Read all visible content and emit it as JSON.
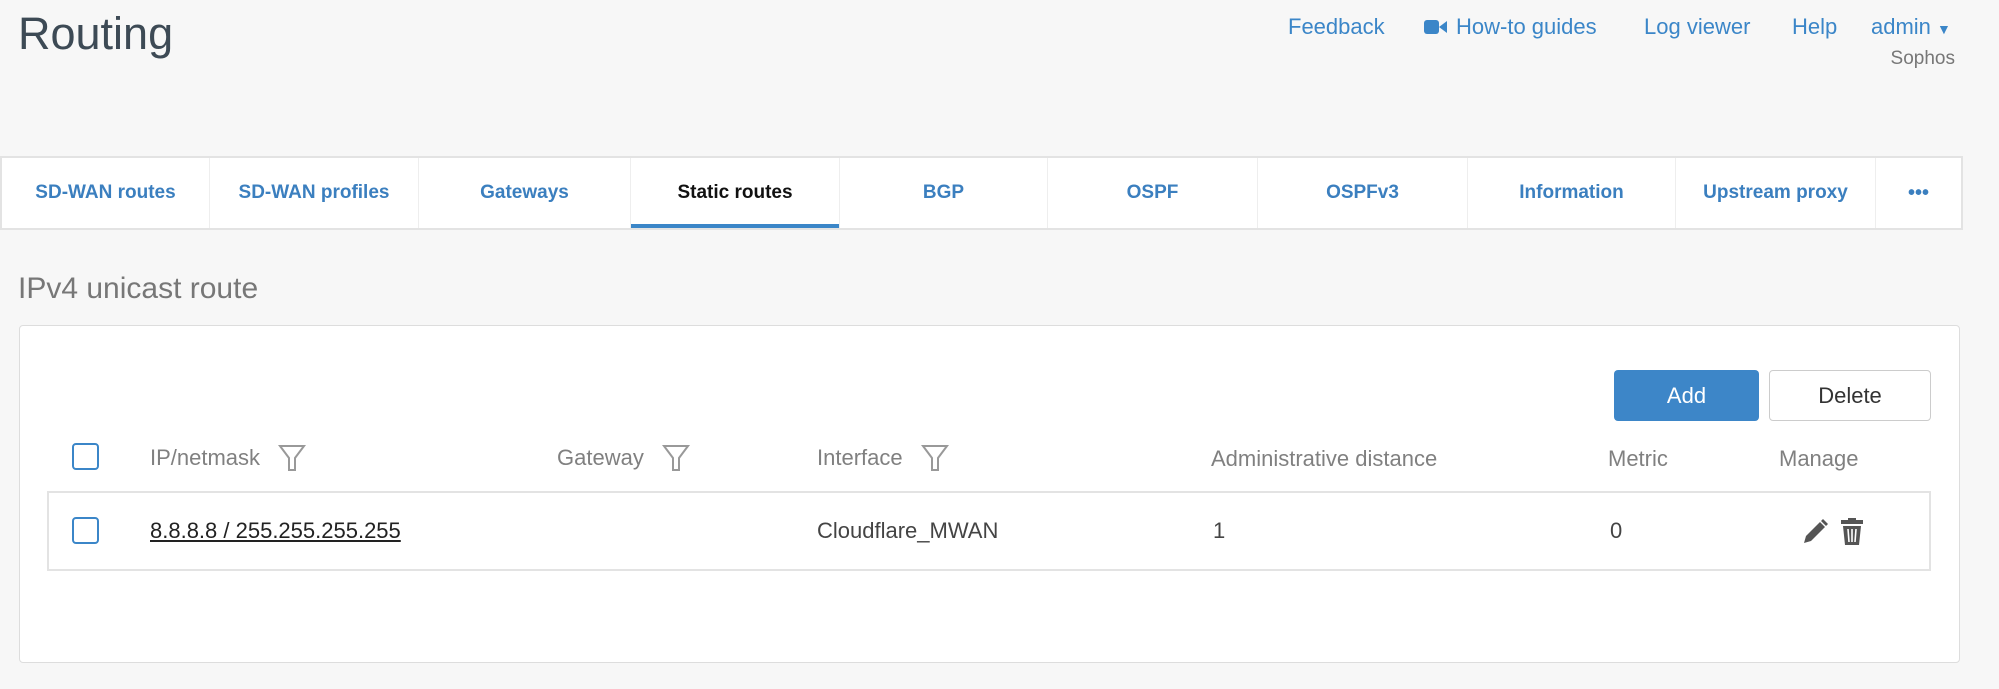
{
  "header": {
    "title": "Routing",
    "nav": {
      "feedback": "Feedback",
      "howto": "How-to guides",
      "logviewer": "Log viewer",
      "help": "Help",
      "user": "admin"
    },
    "org": "Sophos"
  },
  "tabs": [
    {
      "label": "SD-WAN routes"
    },
    {
      "label": "SD-WAN profiles"
    },
    {
      "label": "Gateways"
    },
    {
      "label": "Static routes",
      "active": true
    },
    {
      "label": "BGP"
    },
    {
      "label": "OSPF"
    },
    {
      "label": "OSPFv3"
    },
    {
      "label": "Information"
    },
    {
      "label": "Upstream proxy"
    },
    {
      "label": "•••"
    }
  ],
  "section": {
    "title": "IPv4 unicast route",
    "add_label": "Add",
    "delete_label": "Delete"
  },
  "table": {
    "columns": [
      "IP/netmask",
      "Gateway",
      "Interface",
      "Administrative distance",
      "Metric",
      "Manage"
    ],
    "rows": [
      {
        "ip": "8.8.8.8 / 255.255.255.255",
        "gateway": "",
        "interface": "Cloudflare_MWAN",
        "distance": "1",
        "metric": "0"
      }
    ]
  },
  "colors": {
    "accent": "#3b86c8"
  }
}
